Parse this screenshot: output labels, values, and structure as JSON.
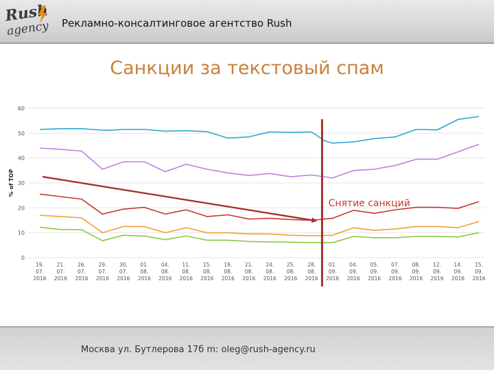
{
  "header": {
    "logo_text_top": "Rush",
    "logo_text_bottom": "agency",
    "agency_name": "Рекламно-консалтинговое агентство Rush"
  },
  "slide": {
    "title": "Санкции за текстовый спам"
  },
  "footer": {
    "address": "Москва ул. Бутлерова 17б  m: oleg@rush-agency.ru"
  },
  "colors": {
    "title": "#c8813a",
    "annotation_line": "#a3322d",
    "annotation_text": "#c0392b"
  },
  "chart_data": {
    "type": "line",
    "ylabel": "% of TOP",
    "xlabel": "",
    "ylim": [
      0,
      60
    ],
    "yticks": [
      0,
      10,
      20,
      30,
      40,
      50,
      60
    ],
    "ytick_labels": [
      "0",
      "10",
      "20",
      "30",
      "40",
      "50",
      "60"
    ],
    "grid": true,
    "categories": [
      [
        "19.",
        "07.",
        "2016"
      ],
      [
        "21.",
        "07.",
        "2016"
      ],
      [
        "26.",
        "07.",
        "2016"
      ],
      [
        "29.",
        "07.",
        "2016"
      ],
      [
        "30.",
        "07.",
        "2016"
      ],
      [
        "01.",
        "08.",
        "2016"
      ],
      [
        "04.",
        "08.",
        "2016"
      ],
      [
        "11.",
        "08.",
        "2016"
      ],
      [
        "15.",
        "08.",
        "2016"
      ],
      [
        "19.",
        "08.",
        "2016"
      ],
      [
        "21.",
        "08.",
        "2016"
      ],
      [
        "24.",
        "08.",
        "2016"
      ],
      [
        "25.",
        "08.",
        "2016"
      ],
      [
        "28.",
        "08.",
        "2016"
      ],
      [
        "01.",
        "09.",
        "2016"
      ],
      [
        "04.",
        "09.",
        "2016"
      ],
      [
        "05.",
        "09.",
        "2016"
      ],
      [
        "07.",
        "09.",
        "2016"
      ],
      [
        "08.",
        "09.",
        "2016"
      ],
      [
        "12.",
        "09.",
        "2016"
      ],
      [
        "14.",
        "09.",
        "2016"
      ],
      [
        "15.",
        "09.",
        "2016"
      ]
    ],
    "x": [
      0,
      1,
      2,
      3,
      4,
      5,
      6,
      7,
      8,
      9,
      10,
      11,
      12,
      13,
      14,
      15,
      16,
      17,
      18,
      19,
      20,
      21
    ],
    "series": [
      {
        "color": "#2aa7d2",
        "x": [
          0,
          1,
          2,
          3,
          3.5,
          4,
          5,
          6,
          7,
          8,
          9,
          10,
          11,
          12,
          13,
          13.6,
          14,
          15,
          16,
          17,
          18,
          19,
          20,
          21
        ],
        "values": [
          51.5,
          51.8,
          51.8,
          51.2,
          51.2,
          51.5,
          51.5,
          50.8,
          51,
          50.6,
          48,
          48.5,
          50.5,
          50.3,
          50.5,
          47,
          46,
          46.5,
          47.8,
          48.5,
          51.5,
          51.3,
          55.5,
          56.7
        ]
      },
      {
        "color": "#c07fdc",
        "x": [
          0,
          1,
          2,
          3,
          4,
          5,
          6,
          7,
          8,
          9,
          10,
          11,
          12,
          13,
          14,
          15,
          16,
          17,
          18,
          19,
          20,
          21
        ],
        "values": [
          44,
          43.5,
          42.8,
          35.5,
          38.5,
          38.5,
          34.5,
          37.5,
          35.5,
          34,
          33,
          33.8,
          32.5,
          33.2,
          32,
          35,
          35.5,
          37,
          39.5,
          39.5,
          42.5,
          45.5
        ]
      },
      {
        "color": "#c5362f",
        "x": [
          0,
          1,
          2,
          3,
          4,
          5,
          6,
          7,
          8,
          9,
          10,
          11,
          12,
          13,
          14,
          15,
          16,
          17,
          18,
          19,
          20,
          21
        ],
        "values": [
          25.5,
          24.5,
          23.5,
          17.5,
          19.5,
          20.2,
          17.5,
          19.2,
          16.5,
          17.2,
          15.5,
          15.8,
          15.3,
          15,
          15.8,
          19,
          17.8,
          19.2,
          20.2,
          20.2,
          19.8,
          22.5
        ]
      },
      {
        "color": "#f0a035",
        "x": [
          0,
          1,
          2,
          3,
          4,
          5,
          6,
          7,
          8,
          9,
          10,
          11,
          12,
          13,
          14,
          15,
          16,
          17,
          18,
          19,
          20,
          21
        ],
        "values": [
          17,
          16.5,
          16,
          10,
          12.5,
          12.5,
          10,
          12,
          10,
          10,
          9.5,
          9.5,
          9,
          8.8,
          9,
          12,
          11,
          11.5,
          12.5,
          12.5,
          12,
          14.5
        ]
      },
      {
        "color": "#8cc63e",
        "x": [
          0,
          1,
          2,
          3,
          4,
          5,
          6,
          7,
          8,
          9,
          10,
          11,
          12,
          13,
          14,
          15,
          16,
          17,
          18,
          19,
          20,
          21
        ],
        "values": [
          12.2,
          11.3,
          11.2,
          6.8,
          9,
          8.7,
          7.2,
          8.7,
          7,
          7,
          6.5,
          6.3,
          6.2,
          6,
          6,
          8.5,
          8,
          8,
          8.5,
          8.5,
          8.3,
          10
        ]
      }
    ],
    "annotations": {
      "arrow": {
        "from": [
          0,
          32.5
        ],
        "to": [
          13.2,
          14.8
        ]
      },
      "vline": {
        "x": 13.5
      },
      "label": {
        "text": "Снятие санкций",
        "x": 13.8,
        "y": 22
      }
    }
  }
}
